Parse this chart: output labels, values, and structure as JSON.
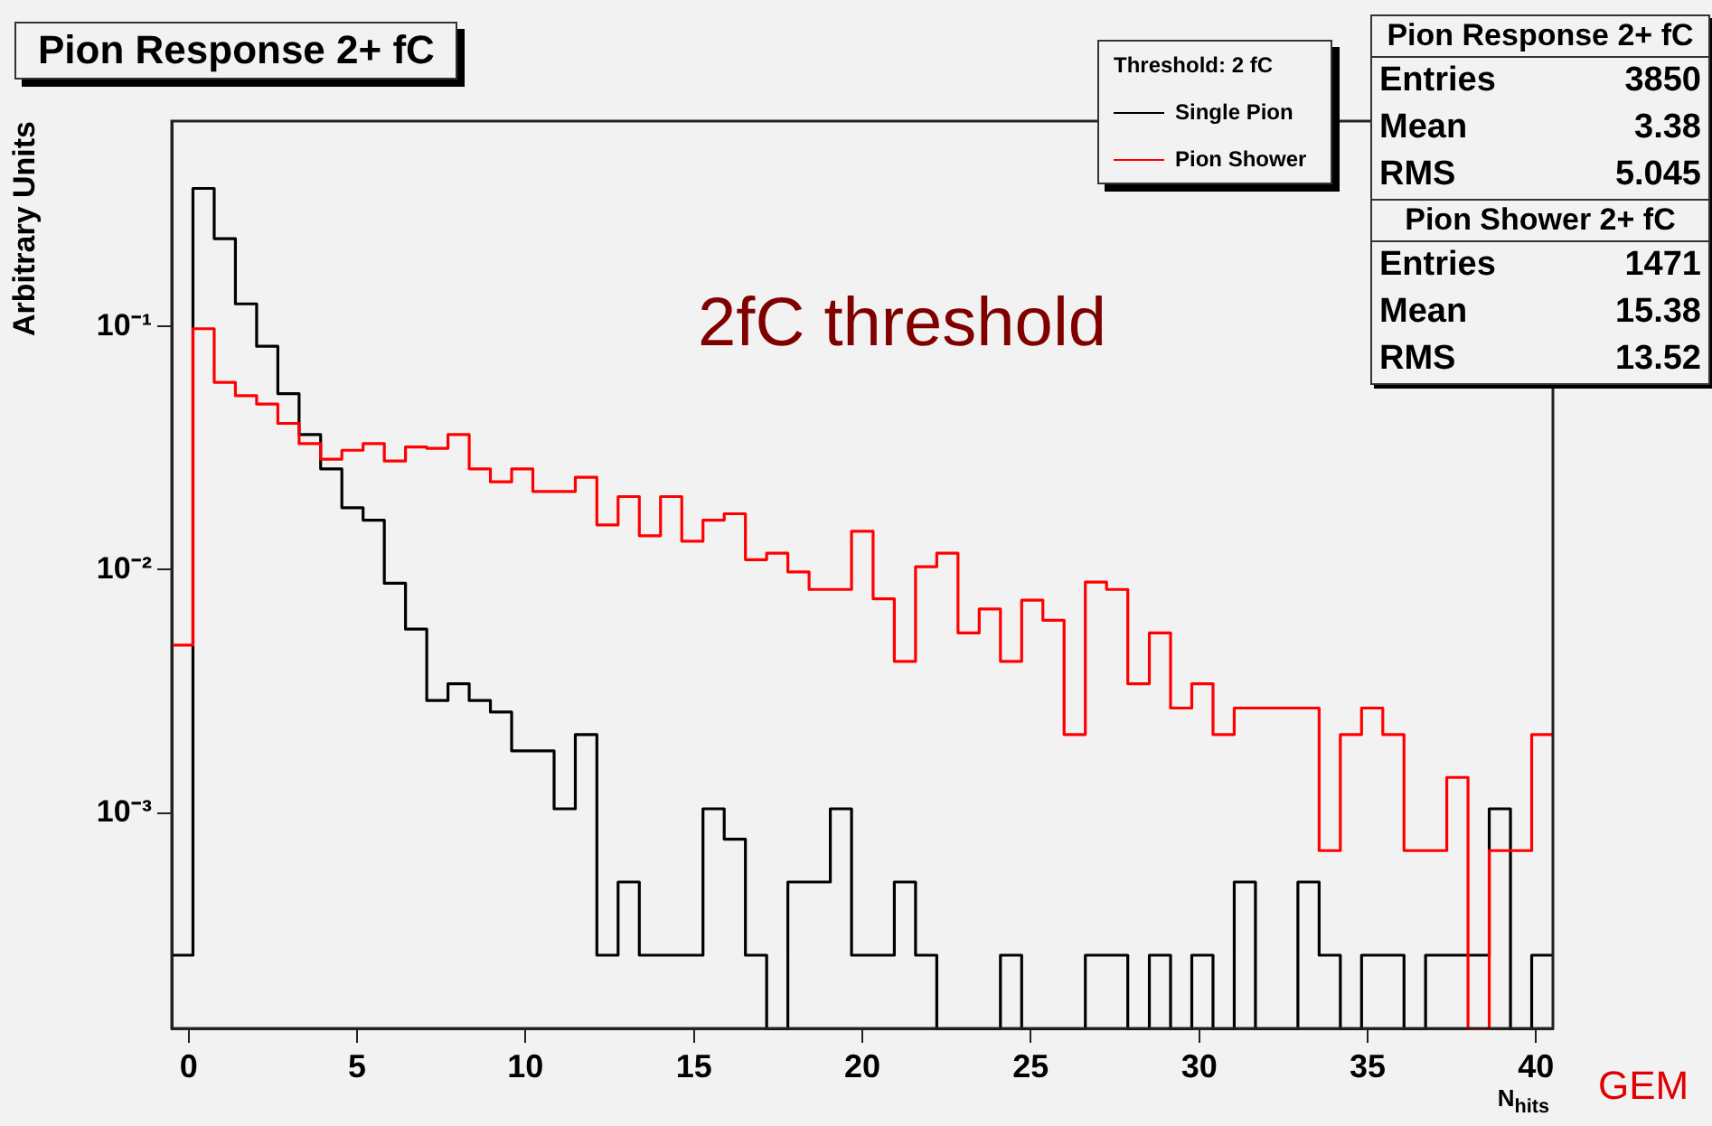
{
  "chart_data": {
    "type": "histogram",
    "title": "Pion Response 2+ fC",
    "xlabel": "N$_{hits}$",
    "ylabel": "Arbitrary Units",
    "legend_title": "Threshold: 2 fC",
    "legend": "top right",
    "log": "y",
    "bins": [
      -0.5,
      0.13,
      0.76,
      1.39,
      2.02,
      2.65,
      3.28,
      3.92,
      4.55,
      5.18,
      5.81,
      6.44,
      7.07,
      7.7,
      8.33,
      8.96,
      9.59,
      10.22,
      10.85,
      11.48,
      12.12,
      12.75,
      13.38,
      14.01,
      14.64,
      15.27,
      15.9,
      16.53,
      17.16,
      17.79,
      18.42,
      19.05,
      19.68,
      20.32,
      20.95,
      21.58,
      22.21,
      22.84,
      23.47,
      24.1,
      24.73,
      25.36,
      25.99,
      26.62,
      27.25,
      27.88,
      28.52,
      29.15,
      29.78,
      30.41,
      31.04,
      31.67,
      32.3,
      32.93,
      33.56,
      34.19,
      34.82,
      35.45,
      36.08,
      36.72,
      37.35,
      37.98,
      38.61,
      39.24,
      39.87,
      40.5
    ],
    "series": [
      {
        "name": "Single Pion",
        "color": "#000000",
        "values": [
          0.00026,
          0.37,
          0.23,
          0.124,
          0.083,
          0.053,
          0.036,
          0.026,
          0.018,
          0.016,
          0.0088,
          0.0057,
          0.0029,
          0.0034,
          0.0029,
          0.0026,
          0.0018,
          0.0018,
          0.00104,
          0.0021,
          0.00026,
          0.00052,
          0.00026,
          0.00026,
          0.00026,
          0.00104,
          0.00078,
          0.00026,
          null,
          0.00052,
          0.00052,
          0.00104,
          0.00026,
          0.00026,
          0.00052,
          0.00026,
          null,
          null,
          null,
          0.00026,
          null,
          null,
          null,
          0.00026,
          0.00026,
          null,
          0.00026,
          null,
          0.00026,
          null,
          0.00052,
          null,
          null,
          0.00052,
          0.00026,
          null,
          0.00026,
          0.00026,
          null,
          0.00026,
          0.00026,
          0.00026,
          0.00104,
          null,
          0.00026
        ]
      },
      {
        "name": "Pion Shower",
        "color": "#ff0000",
        "values": [
          0.0049,
          0.098,
          0.059,
          0.052,
          0.048,
          0.04,
          0.033,
          0.0285,
          0.031,
          0.033,
          0.028,
          0.032,
          0.0316,
          0.036,
          0.026,
          0.023,
          0.026,
          0.021,
          0.021,
          0.024,
          0.0153,
          0.02,
          0.0138,
          0.02,
          0.0131,
          0.016,
          0.017,
          0.011,
          0.0117,
          0.0098,
          0.0083,
          0.0083,
          0.0144,
          0.0076,
          0.0042,
          0.0103,
          0.0117,
          0.0055,
          0.0069,
          0.0042,
          0.0075,
          0.0062,
          0.0021,
          0.0089,
          0.0083,
          0.0034,
          0.0055,
          0.0027,
          0.0034,
          0.0021,
          0.0027,
          0.0027,
          0.0027,
          0.0027,
          0.0007,
          0.0021,
          0.0027,
          0.0021,
          0.0007,
          0.0007,
          0.0014,
          null,
          0.0007,
          0.0007,
          0.0021
        ]
      }
    ],
    "xlim": [
      -0.5,
      40.5
    ],
    "xticks": [
      0,
      5,
      10,
      15,
      20,
      25,
      30,
      35,
      40
    ],
    "ylim": [
      0.00013,
      0.7
    ],
    "yticks": [
      {
        "value": 0.001,
        "label": "10⁻³"
      },
      {
        "value": 0.01,
        "label": "10⁻²"
      },
      {
        "value": 0.1,
        "label": "10⁻¹"
      }
    ],
    "annotations": [
      "2fC threshold",
      "GEM",
      "Pion Response 2+ fC",
      "Entries",
      "3850",
      "Mean",
      "3.38",
      "RMS",
      "5.045",
      "Pion Shower 2+ fC",
      "Entries",
      "1471",
      "Mean",
      "15.38",
      "RMS",
      "13.52"
    ]
  }
}
